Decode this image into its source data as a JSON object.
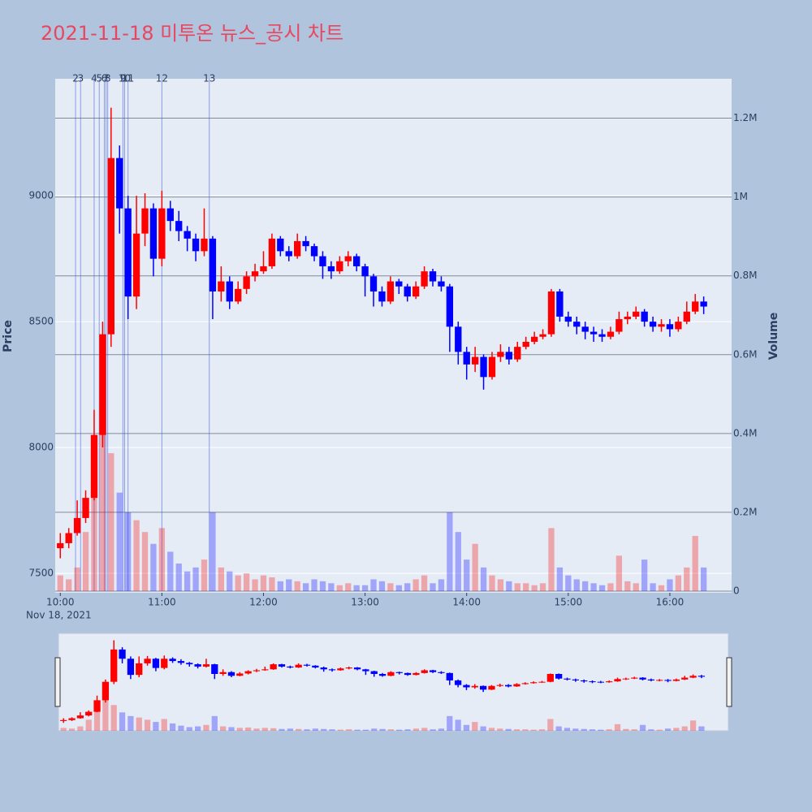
{
  "chart_data": {
    "type": "candlestick",
    "title": "2021-11-18 미투온 뉴스_공시 차트",
    "x_date_label": "Nov 18, 2021",
    "y_title": "Price",
    "y2_title": "Volume",
    "x": [
      "10:00",
      "10:05",
      "10:10",
      "10:15",
      "10:20",
      "10:25",
      "10:30",
      "10:35",
      "10:40",
      "10:45",
      "10:50",
      "10:55",
      "11:00",
      "11:05",
      "11:10",
      "11:15",
      "11:20",
      "11:25",
      "11:30",
      "11:35",
      "11:40",
      "11:45",
      "11:50",
      "11:55",
      "12:00",
      "12:05",
      "12:10",
      "12:15",
      "12:20",
      "12:25",
      "12:30",
      "12:35",
      "12:40",
      "12:45",
      "12:50",
      "12:55",
      "13:00",
      "13:05",
      "13:10",
      "13:15",
      "13:20",
      "13:25",
      "13:30",
      "13:35",
      "13:40",
      "13:45",
      "13:50",
      "13:55",
      "14:00",
      "14:05",
      "14:10",
      "14:15",
      "14:20",
      "14:25",
      "14:30",
      "14:35",
      "14:40",
      "14:45",
      "14:50",
      "14:55",
      "15:00",
      "15:05",
      "15:10",
      "15:15",
      "15:20",
      "15:25",
      "15:30",
      "15:35",
      "15:40",
      "15:45",
      "15:50",
      "15:55",
      "16:00",
      "16:05",
      "16:10",
      "16:15",
      "16:20"
    ],
    "open": [
      7600,
      7620,
      7660,
      7720,
      7800,
      8050,
      8450,
      9150,
      8950,
      8600,
      8850,
      8950,
      8750,
      8950,
      8900,
      8860,
      8830,
      8780,
      8830,
      8620,
      8660,
      8580,
      8630,
      8680,
      8700,
      8720,
      8830,
      8780,
      8760,
      8820,
      8800,
      8760,
      8720,
      8700,
      8740,
      8760,
      8720,
      8680,
      8620,
      8580,
      8660,
      8640,
      8600,
      8640,
      8700,
      8660,
      8640,
      8480,
      8380,
      8330,
      8360,
      8280,
      8360,
      8380,
      8350,
      8400,
      8420,
      8440,
      8450,
      8620,
      8520,
      8500,
      8480,
      8460,
      8450,
      8440,
      8460,
      8510,
      8520,
      8540,
      8500,
      8480,
      8490,
      8470,
      8500,
      8540,
      8580
    ],
    "high": [
      7660,
      7680,
      7790,
      7830,
      8150,
      8500,
      9350,
      9200,
      9000,
      9000,
      9010,
      8970,
      9020,
      8980,
      8940,
      8880,
      8850,
      8950,
      8840,
      8720,
      8680,
      8660,
      8700,
      8730,
      8780,
      8850,
      8840,
      8800,
      8850,
      8840,
      8810,
      8780,
      8740,
      8760,
      8780,
      8770,
      8730,
      8690,
      8640,
      8680,
      8670,
      8650,
      8660,
      8720,
      8710,
      8680,
      8650,
      8500,
      8400,
      8400,
      8370,
      8380,
      8410,
      8400,
      8420,
      8440,
      8460,
      8470,
      8630,
      8630,
      8540,
      8520,
      8500,
      8480,
      8470,
      8480,
      8540,
      8540,
      8560,
      8550,
      8520,
      8510,
      8510,
      8520,
      8580,
      8610,
      8600
    ],
    "low": [
      7560,
      7600,
      7650,
      7700,
      7790,
      8000,
      8400,
      8850,
      8510,
      8550,
      8800,
      8680,
      8720,
      8860,
      8820,
      8780,
      8740,
      8760,
      8510,
      8580,
      8550,
      8570,
      8610,
      8660,
      8690,
      8710,
      8760,
      8740,
      8750,
      8780,
      8740,
      8670,
      8670,
      8690,
      8720,
      8700,
      8600,
      8560,
      8560,
      8570,
      8610,
      8580,
      8590,
      8630,
      8640,
      8620,
      8380,
      8330,
      8270,
      8300,
      8230,
      8270,
      8340,
      8330,
      8340,
      8390,
      8410,
      8430,
      8440,
      8500,
      8480,
      8450,
      8430,
      8420,
      8420,
      8430,
      8450,
      8490,
      8510,
      8480,
      8460,
      8460,
      8440,
      8460,
      8490,
      8530,
      8530
    ],
    "close": [
      7620,
      7660,
      7720,
      7800,
      8050,
      8450,
      9150,
      8950,
      8600,
      8850,
      8950,
      8750,
      8950,
      8900,
      8860,
      8830,
      8780,
      8830,
      8620,
      8660,
      8580,
      8630,
      8680,
      8700,
      8720,
      8830,
      8780,
      8760,
      8820,
      8800,
      8760,
      8720,
      8700,
      8740,
      8760,
      8720,
      8680,
      8620,
      8580,
      8660,
      8640,
      8600,
      8640,
      8700,
      8660,
      8640,
      8480,
      8380,
      8330,
      8360,
      8280,
      8360,
      8380,
      8350,
      8400,
      8420,
      8440,
      8450,
      8620,
      8520,
      8500,
      8480,
      8460,
      8450,
      8440,
      8460,
      8510,
      8520,
      8540,
      8500,
      8480,
      8490,
      8470,
      8500,
      8540,
      8580,
      8560
    ],
    "volume": [
      40000,
      30000,
      60000,
      150000,
      300000,
      450000,
      350000,
      250000,
      200000,
      180000,
      150000,
      120000,
      160000,
      100000,
      70000,
      50000,
      60000,
      80000,
      200000,
      60000,
      50000,
      40000,
      45000,
      30000,
      40000,
      35000,
      25000,
      30000,
      25000,
      20000,
      30000,
      25000,
      20000,
      15000,
      20000,
      15000,
      15000,
      30000,
      25000,
      20000,
      15000,
      20000,
      30000,
      40000,
      20000,
      30000,
      200000,
      150000,
      80000,
      120000,
      60000,
      40000,
      30000,
      25000,
      20000,
      20000,
      15000,
      20000,
      160000,
      60000,
      40000,
      30000,
      25000,
      20000,
      15000,
      20000,
      90000,
      25000,
      20000,
      80000,
      20000,
      15000,
      30000,
      40000,
      60000,
      140000,
      60000
    ],
    "increasing_color": "#ff0000",
    "decreasing_color": "#0000ff",
    "news": [
      {
        "label": "2",
        "x": "10:09"
      },
      {
        "label": "3",
        "x": "10:12"
      },
      {
        "label": "4",
        "x": "10:20"
      },
      {
        "label": "5",
        "x": "10:23"
      },
      {
        "label": "6",
        "x": "10:26"
      },
      {
        "label": "7",
        "x": "10:27"
      },
      {
        "label": "8",
        "x": "10:28"
      },
      {
        "label": "9",
        "x": "10:37"
      },
      {
        "label": "10",
        "x": "10:38"
      },
      {
        "label": "11",
        "x": "10:40"
      },
      {
        "label": "12",
        "x": "11:00"
      },
      {
        "label": "13",
        "x": "11:28"
      }
    ],
    "xlim": [
      "09:57",
      "16:36"
    ],
    "xticks": [
      "10:00",
      "11:00",
      "12:00",
      "13:00",
      "14:00",
      "15:00",
      "16:00"
    ],
    "ylim": [
      7423,
      9465
    ],
    "yticks": [
      7500,
      8000,
      8500,
      9000
    ],
    "y2lim": [
      0,
      1300000
    ],
    "y2ticks": [
      0,
      {
        "value": 200000,
        "label": "0.2M"
      },
      {
        "value": 400000,
        "label": "0.4M"
      },
      {
        "value": 600000,
        "label": "0.6M"
      },
      {
        "value": 800000,
        "label": "0.8M"
      },
      {
        "value": 1000000,
        "label": "1M"
      },
      {
        "value": 1200000,
        "label": "1.2M"
      }
    ],
    "grid": true,
    "rangeslider": true
  }
}
